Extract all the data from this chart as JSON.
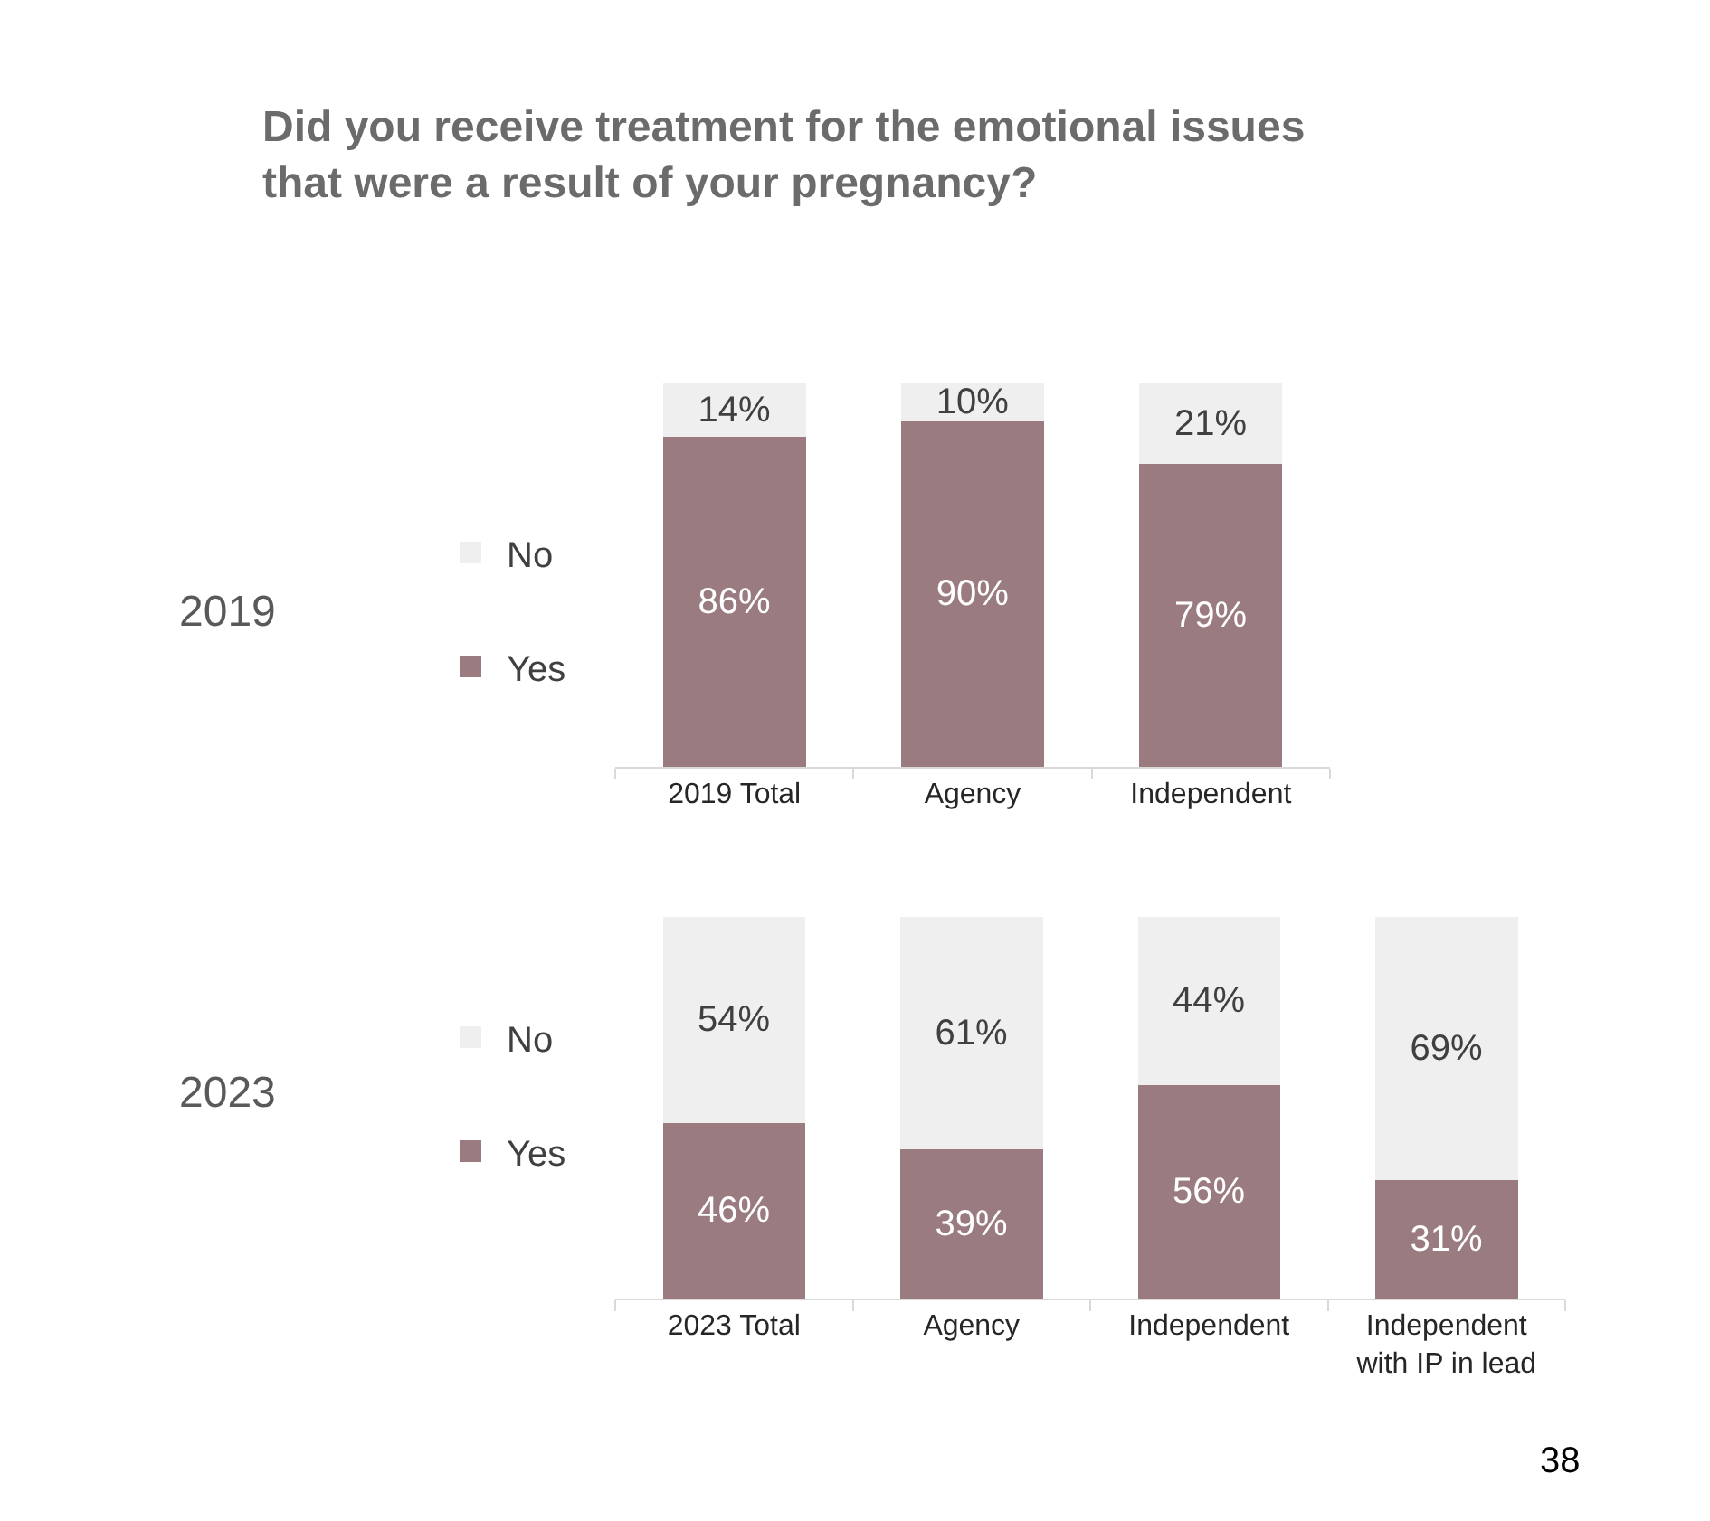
{
  "chart_data": [
    {
      "type": "bar",
      "title": "Did you receive treatment for the emotional issues that were a result of your pregnancy?",
      "ylabel": "2019",
      "categories": [
        "2019 Total",
        "Agency",
        "Independent"
      ],
      "stacked": true,
      "ylim": [
        0,
        100
      ],
      "tick_labels": "x",
      "legend": "left",
      "series": [
        {
          "name": "Yes",
          "color": "#9a7b80",
          "values": [
            86,
            90,
            79
          ],
          "value_labels": [
            "86%",
            "90%",
            "79%"
          ]
        },
        {
          "name": "No",
          "color": "#efefef",
          "values": [
            14,
            10,
            21
          ],
          "value_labels": [
            "14%",
            "10%",
            "21%"
          ]
        }
      ]
    },
    {
      "type": "bar",
      "ylabel": "2023",
      "annotations": [
        "38"
      ],
      "categories": [
        "2023 Total",
        "Agency",
        "Independent",
        "Independent with IP in lead"
      ],
      "stacked": true,
      "ylim": [
        0,
        100
      ],
      "tick_labels": "x",
      "legend": "left",
      "series": [
        {
          "name": "Yes",
          "color": "#9a7b80",
          "values": [
            46,
            39,
            56,
            31
          ],
          "value_labels": [
            "46%",
            "39%",
            "56%",
            "31%"
          ]
        },
        {
          "name": "No",
          "color": "#efefef",
          "values": [
            54,
            61,
            44,
            69
          ],
          "value_labels": [
            "54%",
            "61%",
            "44%",
            "69%"
          ]
        }
      ]
    }
  ]
}
